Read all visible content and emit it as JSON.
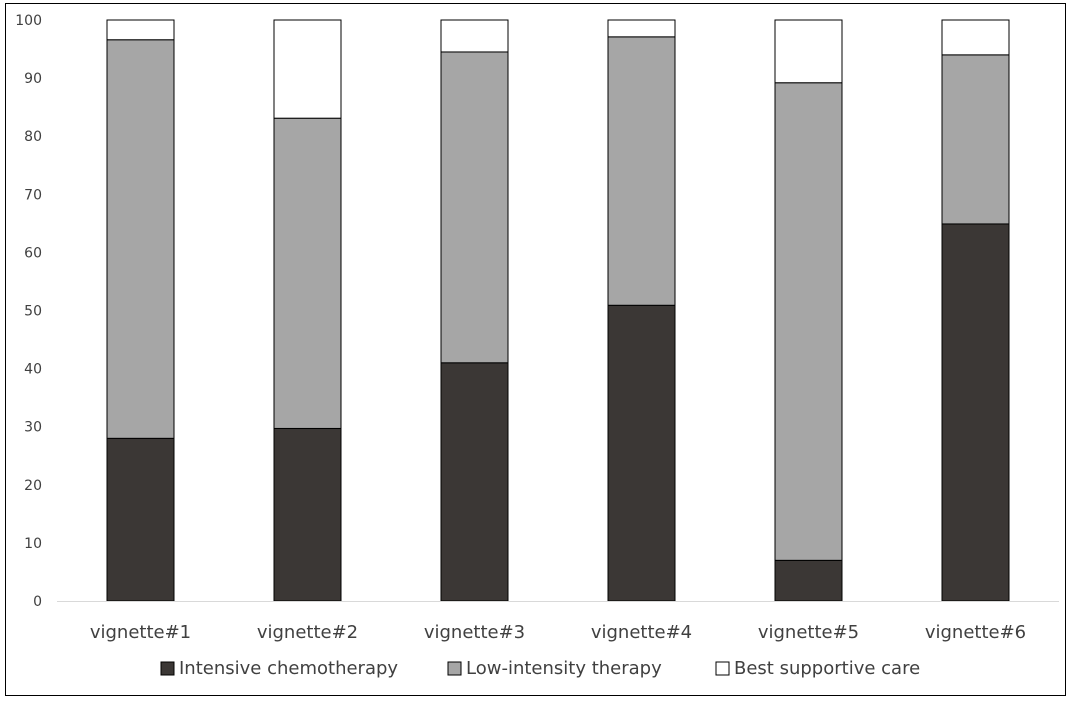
{
  "chart_data": {
    "type": "bar",
    "stacked": true,
    "categories": [
      "vignette#1",
      "vignette#2",
      "vignette#3",
      "vignette#4",
      "vignette#5",
      "vignette#6"
    ],
    "series": [
      {
        "name": "Intensive chemotherapy",
        "color": "#3b3735",
        "values": [
          28,
          29.7,
          41,
          50.9,
          7,
          64.9
        ]
      },
      {
        "name": "Low-intensity therapy",
        "color": "#a6a6a6",
        "values": [
          68.6,
          53.4,
          53.5,
          46.2,
          82.2,
          29.1
        ]
      },
      {
        "name": "Best supportive care",
        "color": "#ffffff",
        "values": [
          3.4,
          16.9,
          5.5,
          2.9,
          10.8,
          6
        ]
      }
    ],
    "yticks": [
      "0",
      "10",
      "20",
      "30",
      "40",
      "50",
      "60",
      "70",
      "80",
      "90",
      "100"
    ],
    "ylim": [
      0,
      100
    ],
    "grid": false,
    "legend_position": "bottom",
    "title": "",
    "xlabel": "",
    "ylabel": ""
  }
}
